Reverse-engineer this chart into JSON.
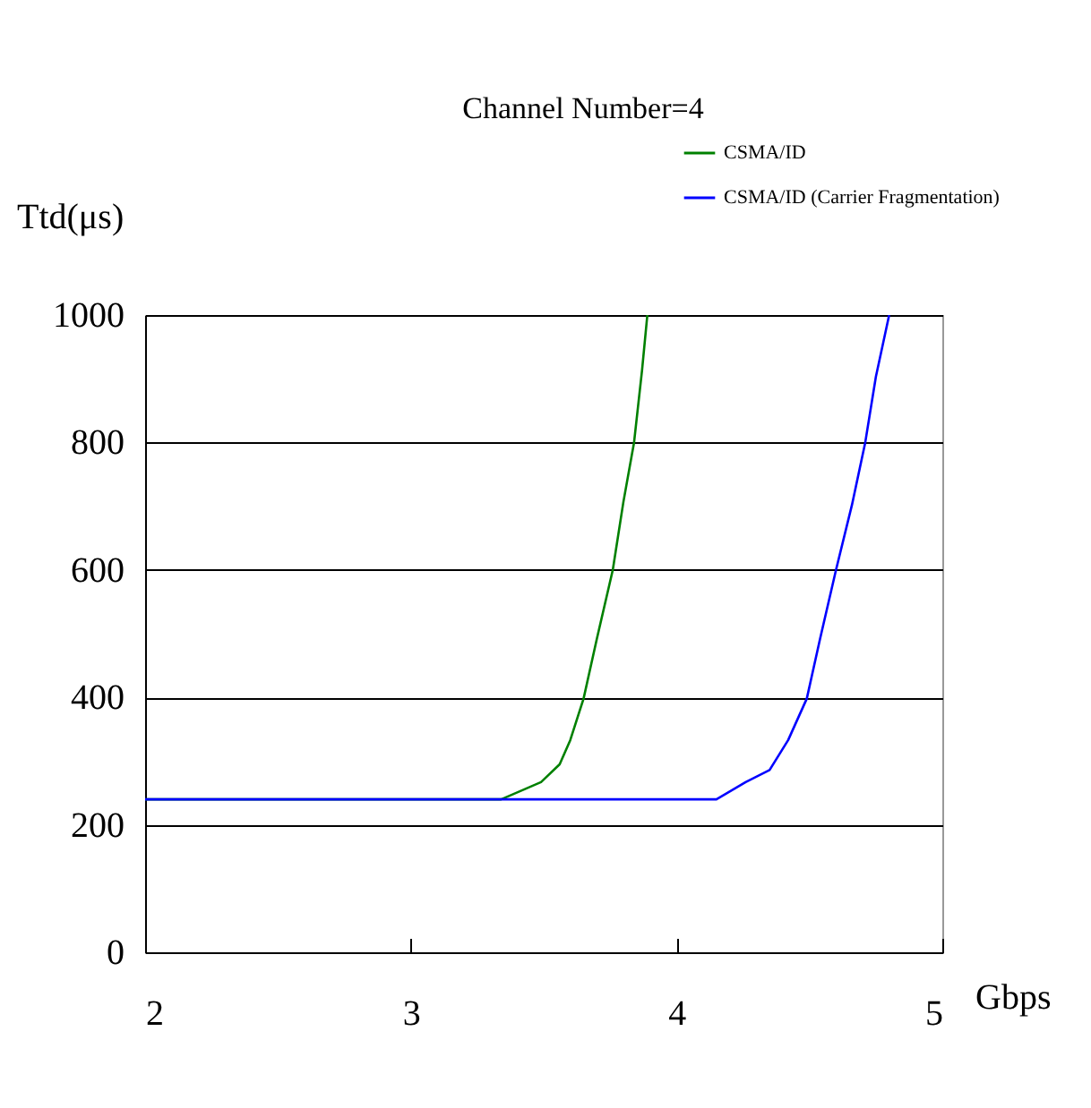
{
  "chart_data": {
    "type": "line",
    "title": "Channel Number=4",
    "xlabel": "Gbps",
    "ylabel": "Ttd(μs)",
    "xlim": [
      2,
      5
    ],
    "ylim": [
      0,
      1000
    ],
    "xticks": [
      2,
      3,
      4,
      5
    ],
    "yticks": [
      0,
      200,
      400,
      600,
      800,
      1000
    ],
    "grid": "y",
    "legend": "top right",
    "series": [
      {
        "name": "CSMA/ID",
        "color": "#008000",
        "x": [
          2,
          3.34,
          3.49,
          3.56,
          3.6,
          3.65,
          3.7,
          3.76,
          3.8,
          3.84,
          3.87,
          3.89
        ],
        "values": [
          240,
          240,
          267,
          295,
          333,
          398,
          492,
          600,
          707,
          800,
          913,
          1000
        ]
      },
      {
        "name": "CSMA/ID (Carrier Fragmentation)",
        "color": "#0000ff",
        "x": [
          2,
          4.15,
          4.26,
          4.35,
          4.42,
          4.49,
          4.54,
          4.6,
          4.66,
          4.71,
          4.75,
          4.8
        ],
        "values": [
          240,
          240,
          267,
          286,
          333,
          398,
          492,
          600,
          702,
          800,
          903,
          1000
        ]
      }
    ]
  }
}
